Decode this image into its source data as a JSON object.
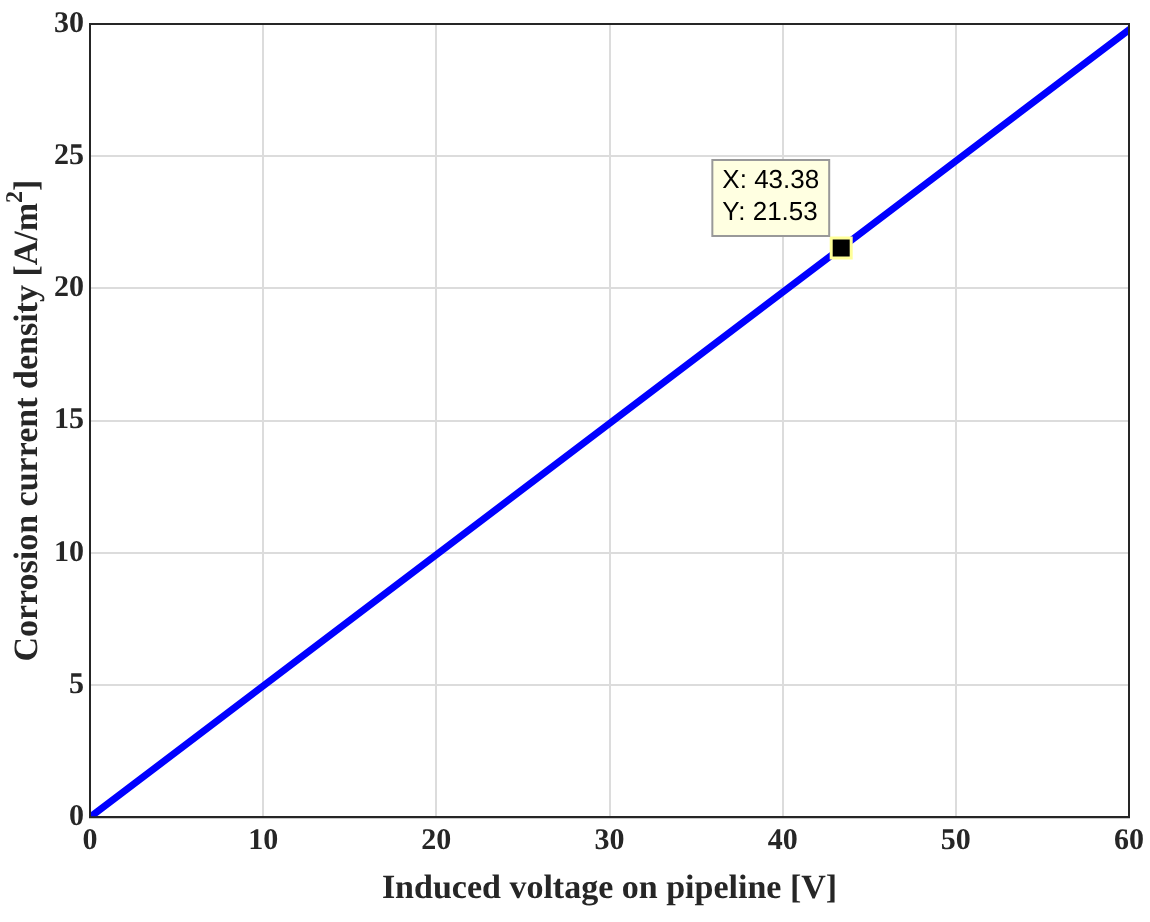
{
  "chart_data": {
    "type": "line",
    "xlabel": "Induced voltage on pipeline [V]",
    "ylabel": "Corrosion current density [A/m$^{2}$]",
    "x": [
      0,
      43.38,
      60
    ],
    "series": [
      {
        "color": "#0000ff",
        "values": [
          0,
          21.53,
          29.78
        ]
      }
    ],
    "xlim": [
      0,
      60
    ],
    "xticks": [
      0,
      10,
      20,
      30,
      40,
      50,
      60
    ],
    "ylim": [
      0,
      30
    ],
    "yticks": [
      0,
      5,
      10,
      15,
      20,
      25,
      30
    ],
    "grid": true,
    "marker": "none",
    "line_style": "solid",
    "annotations": [
      {
        "text": "X: 43.38\nY: 21.53",
        "x": 43.38,
        "y": 21.53
      }
    ]
  }
}
